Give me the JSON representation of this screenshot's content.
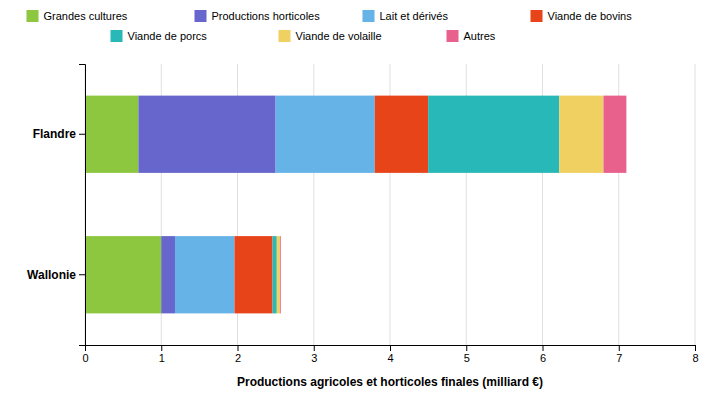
{
  "chart_data": {
    "type": "bar",
    "orientation": "horizontal",
    "stacked": true,
    "xlabel": "Productions agricoles et horticoles finales (milliard €)",
    "categories": [
      "Wallonie",
      "Flandre"
    ],
    "series": [
      {
        "name": "Grandes cultures",
        "color": "#8dc63f",
        "values": [
          1.0,
          0.7
        ]
      },
      {
        "name": "Productions horticoles",
        "color": "#6666cc",
        "values": [
          0.18,
          1.8
        ]
      },
      {
        "name": "Lait et dérivés",
        "color": "#66b3e8",
        "values": [
          0.78,
          1.3
        ]
      },
      {
        "name": "Viande de bovins",
        "color": "#e8441a",
        "values": [
          0.5,
          0.7
        ]
      },
      {
        "name": "Viande de porcs",
        "color": "#29b8b8",
        "values": [
          0.055,
          1.72
        ]
      },
      {
        "name": "Viande de volaille",
        "color": "#f0d060",
        "values": [
          0.045,
          0.58
        ]
      },
      {
        "name": "Autres",
        "color": "#e8608c",
        "values": [
          0.01,
          0.3
        ]
      }
    ],
    "xlim": [
      0,
      8
    ],
    "xticks": [
      0,
      1,
      2,
      3,
      4,
      5,
      6,
      7,
      8
    ],
    "grid": true,
    "legend": "top"
  }
}
